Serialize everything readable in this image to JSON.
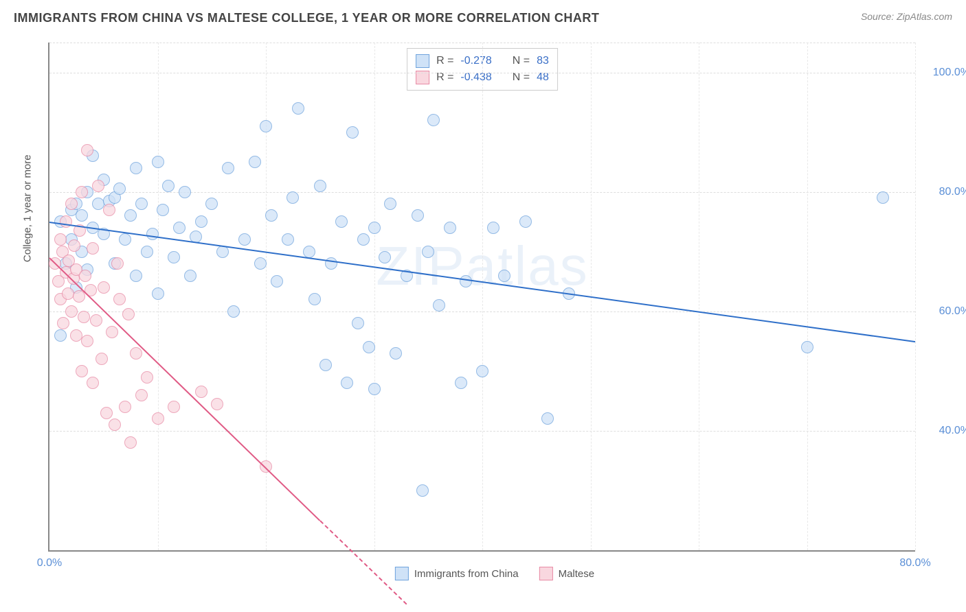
{
  "header": {
    "title": "IMMIGRANTS FROM CHINA VS MALTESE COLLEGE, 1 YEAR OR MORE CORRELATION CHART",
    "source_label": "Source: ",
    "source_name": "ZipAtlas.com"
  },
  "watermark": "ZIPatlas",
  "chart": {
    "type": "scatter",
    "ylabel": "College, 1 year or more",
    "background_color": "#ffffff",
    "grid_color": "#dddddd",
    "axis_color": "#888888",
    "tick_color": "#5b8fd6",
    "tick_fontsize": 16,
    "label_fontsize": 15,
    "xlim": [
      0,
      80
    ],
    "ylim": [
      20,
      105
    ],
    "x_ticks": [
      {
        "pos": 0,
        "label": "0.0%"
      },
      {
        "pos": 80,
        "label": "80.0%"
      }
    ],
    "x_gridlines": [
      10,
      20,
      30,
      40,
      50,
      60,
      70,
      80
    ],
    "y_ticks": [
      {
        "pos": 40,
        "label": "40.0%"
      },
      {
        "pos": 60,
        "label": "60.0%"
      },
      {
        "pos": 80,
        "label": "80.0%"
      },
      {
        "pos": 100,
        "label": "100.0%"
      }
    ],
    "series": [
      {
        "name": "Immigrants from China",
        "legend_label": "Immigrants from China",
        "marker_fill": "#cfe2f7",
        "marker_stroke": "#6fa3dd",
        "marker_size": 16,
        "marker_opacity": 0.75,
        "R_label": "R = ",
        "R_value": "-0.278",
        "N_label": "N = ",
        "N_value": "83",
        "trend": {
          "x1": 0,
          "y1": 75,
          "x2": 80,
          "y2": 55,
          "color": "#2e6fc9",
          "width": 2
        },
        "points": [
          [
            1,
            75
          ],
          [
            1.5,
            68
          ],
          [
            2,
            77
          ],
          [
            2,
            72
          ],
          [
            2.5,
            64
          ],
          [
            2.5,
            78
          ],
          [
            3,
            70
          ],
          [
            3,
            76
          ],
          [
            3.5,
            80
          ],
          [
            3.5,
            67
          ],
          [
            4,
            74
          ],
          [
            4,
            86
          ],
          [
            4.5,
            78
          ],
          [
            5,
            82
          ],
          [
            5,
            73
          ],
          [
            5.5,
            78.5
          ],
          [
            6,
            79
          ],
          [
            6,
            68
          ],
          [
            6.5,
            80.5
          ],
          [
            7,
            72
          ],
          [
            7.5,
            76
          ],
          [
            8,
            84
          ],
          [
            8,
            66
          ],
          [
            8.5,
            78
          ],
          [
            9,
            70
          ],
          [
            9.5,
            73
          ],
          [
            10,
            63
          ],
          [
            10,
            85
          ],
          [
            10.5,
            77
          ],
          [
            11,
            81
          ],
          [
            11.5,
            69
          ],
          [
            12,
            74
          ],
          [
            12.5,
            80
          ],
          [
            13,
            66
          ],
          [
            13.5,
            72.5
          ],
          [
            14,
            75
          ],
          [
            15,
            78
          ],
          [
            16,
            70
          ],
          [
            16.5,
            84
          ],
          [
            17,
            60
          ],
          [
            18,
            72
          ],
          [
            19,
            85
          ],
          [
            19.5,
            68
          ],
          [
            20,
            91
          ],
          [
            20.5,
            76
          ],
          [
            21,
            65
          ],
          [
            22,
            72
          ],
          [
            22.5,
            79
          ],
          [
            23,
            94
          ],
          [
            24,
            70
          ],
          [
            24.5,
            62
          ],
          [
            25,
            81
          ],
          [
            25.5,
            51
          ],
          [
            26,
            68
          ],
          [
            27,
            75
          ],
          [
            27.5,
            48
          ],
          [
            28,
            90
          ],
          [
            28.5,
            58
          ],
          [
            29,
            72
          ],
          [
            29.5,
            54
          ],
          [
            30,
            47
          ],
          [
            30,
            74
          ],
          [
            31,
            69
          ],
          [
            31.5,
            78
          ],
          [
            32,
            53
          ],
          [
            33,
            66
          ],
          [
            34,
            76
          ],
          [
            34.5,
            30
          ],
          [
            35,
            70
          ],
          [
            35.5,
            92
          ],
          [
            36,
            61
          ],
          [
            37,
            74
          ],
          [
            38,
            48
          ],
          [
            38.5,
            65
          ],
          [
            40,
            50
          ],
          [
            41,
            74
          ],
          [
            42,
            66
          ],
          [
            44,
            75
          ],
          [
            46,
            42
          ],
          [
            48,
            63
          ],
          [
            70,
            54
          ],
          [
            77,
            79
          ],
          [
            1,
            56
          ]
        ]
      },
      {
        "name": "Maltese",
        "legend_label": "Maltese",
        "marker_fill": "#f9d7df",
        "marker_stroke": "#e88aa5",
        "marker_size": 16,
        "marker_opacity": 0.75,
        "R_label": "R = ",
        "R_value": "-0.438",
        "N_label": "N = ",
        "N_value": "48",
        "trend": {
          "x1": 0,
          "y1": 69,
          "x2": 25,
          "y2": 25,
          "dash_to_x": 33,
          "dash_to_y": 11,
          "color": "#e05a85",
          "width": 2
        },
        "points": [
          [
            0.5,
            68
          ],
          [
            0.8,
            65
          ],
          [
            1,
            72
          ],
          [
            1,
            62
          ],
          [
            1.2,
            70
          ],
          [
            1.3,
            58
          ],
          [
            1.5,
            66.5
          ],
          [
            1.5,
            75
          ],
          [
            1.7,
            63
          ],
          [
            1.8,
            68.5
          ],
          [
            2,
            60
          ],
          [
            2,
            78
          ],
          [
            2.2,
            65.5
          ],
          [
            2.3,
            71
          ],
          [
            2.5,
            56
          ],
          [
            2.5,
            67
          ],
          [
            2.7,
            62.5
          ],
          [
            2.8,
            73.5
          ],
          [
            3,
            50
          ],
          [
            3,
            80
          ],
          [
            3.2,
            59
          ],
          [
            3.3,
            66
          ],
          [
            3.5,
            87
          ],
          [
            3.5,
            55
          ],
          [
            3.8,
            63.5
          ],
          [
            4,
            48
          ],
          [
            4,
            70.5
          ],
          [
            4.3,
            58.5
          ],
          [
            4.5,
            81
          ],
          [
            4.8,
            52
          ],
          [
            5,
            64
          ],
          [
            5.3,
            43
          ],
          [
            5.5,
            77
          ],
          [
            5.8,
            56.5
          ],
          [
            6,
            41
          ],
          [
            6.3,
            68
          ],
          [
            6.5,
            62
          ],
          [
            7,
            44
          ],
          [
            7.3,
            59.5
          ],
          [
            7.5,
            38
          ],
          [
            8,
            53
          ],
          [
            8.5,
            46
          ],
          [
            9,
            49
          ],
          [
            10,
            42
          ],
          [
            11.5,
            44
          ],
          [
            14,
            46.5
          ],
          [
            15.5,
            44.5
          ],
          [
            20,
            34
          ]
        ]
      }
    ]
  }
}
